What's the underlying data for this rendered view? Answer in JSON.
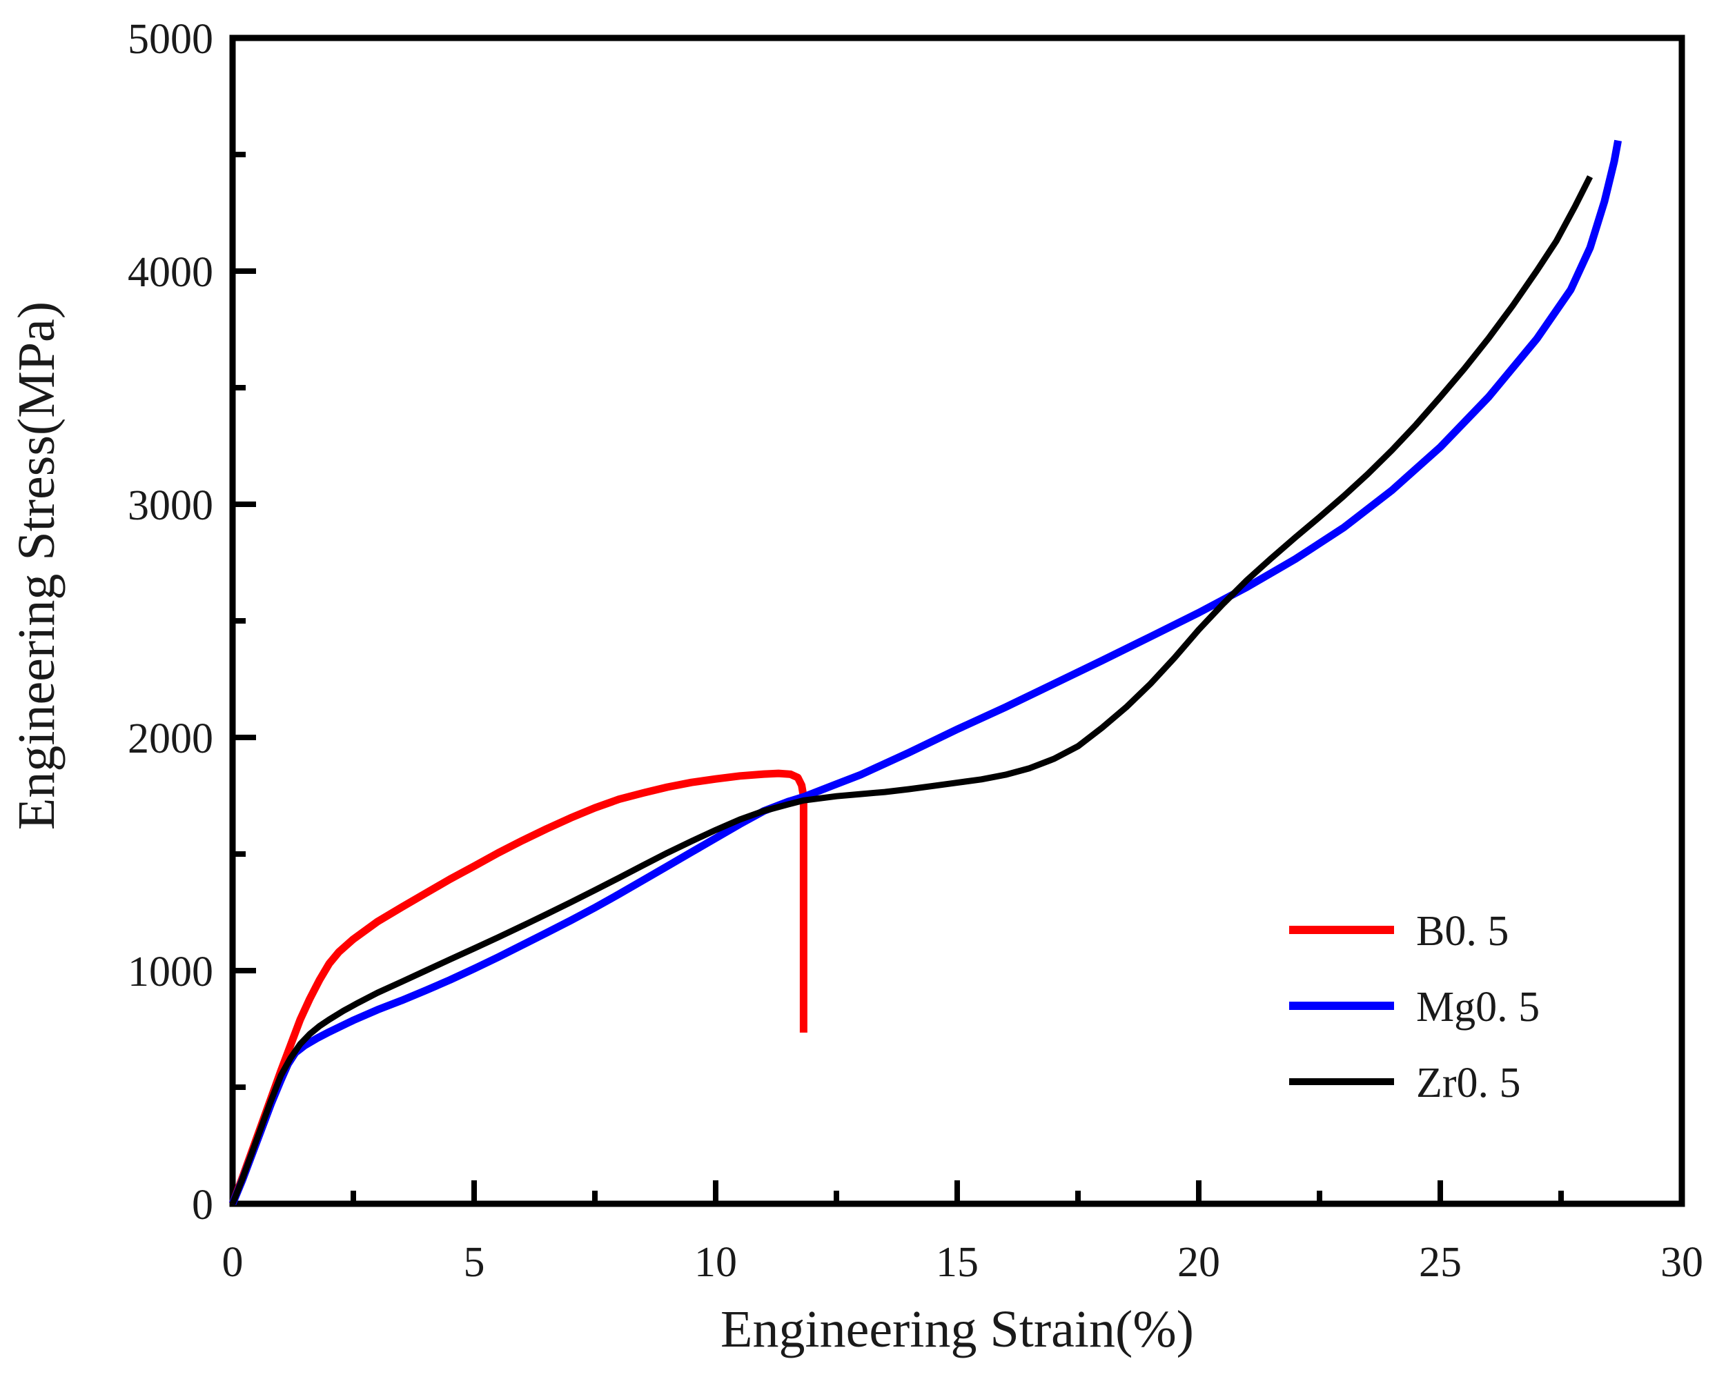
{
  "figure": {
    "background": "#ffffff",
    "frame_color": "#000000"
  },
  "chart_data": {
    "type": "line",
    "title": "",
    "xlabel": "Engineering Strain(%)",
    "ylabel": "Engineering Stress(MPa)",
    "xlim": [
      0,
      30
    ],
    "ylim": [
      0,
      5000
    ],
    "x_major_ticks": [
      0,
      5,
      10,
      15,
      20,
      25,
      30
    ],
    "x_minor_ticks": [
      2.5,
      7.5,
      12.5,
      17.5,
      22.5,
      27.5
    ],
    "y_major_ticks": [
      0,
      1000,
      2000,
      3000,
      4000,
      5000
    ],
    "y_minor_ticks": [
      500,
      1500,
      2500,
      3500,
      4500
    ],
    "grid": false,
    "legend_position": "right-middle-lower",
    "series": [
      {
        "name": "B0. 5",
        "color": "#ff0000",
        "line_width": 11,
        "points": [
          [
            0,
            0
          ],
          [
            0.2,
            110
          ],
          [
            0.4,
            225
          ],
          [
            0.6,
            340
          ],
          [
            0.8,
            455
          ],
          [
            1.0,
            570
          ],
          [
            1.2,
            680
          ],
          [
            1.4,
            790
          ],
          [
            1.6,
            880
          ],
          [
            1.8,
            960
          ],
          [
            2.0,
            1030
          ],
          [
            2.2,
            1080
          ],
          [
            2.5,
            1135
          ],
          [
            3.0,
            1210
          ],
          [
            3.5,
            1272
          ],
          [
            4.0,
            1332
          ],
          [
            4.5,
            1392
          ],
          [
            5.0,
            1448
          ],
          [
            5.5,
            1505
          ],
          [
            6.0,
            1558
          ],
          [
            6.5,
            1608
          ],
          [
            7.0,
            1655
          ],
          [
            7.5,
            1698
          ],
          [
            8.0,
            1735
          ],
          [
            8.5,
            1762
          ],
          [
            9.0,
            1787
          ],
          [
            9.5,
            1807
          ],
          [
            10.0,
            1822
          ],
          [
            10.5,
            1835
          ],
          [
            11.0,
            1843
          ],
          [
            11.3,
            1846
          ],
          [
            11.55,
            1842
          ],
          [
            11.7,
            1828
          ],
          [
            11.78,
            1795
          ],
          [
            11.82,
            1746
          ],
          [
            11.82,
            734
          ]
        ]
      },
      {
        "name": "Mg0. 5",
        "color": "#0000ff",
        "line_width": 11,
        "points": [
          [
            0,
            0
          ],
          [
            0.2,
            100
          ],
          [
            0.4,
            210
          ],
          [
            0.6,
            320
          ],
          [
            0.8,
            430
          ],
          [
            1.0,
            530
          ],
          [
            1.15,
            600
          ],
          [
            1.3,
            648
          ],
          [
            1.5,
            680
          ],
          [
            1.75,
            710
          ],
          [
            2.0,
            737
          ],
          [
            2.5,
            787
          ],
          [
            3.0,
            832
          ],
          [
            3.5,
            872
          ],
          [
            4.0,
            915
          ],
          [
            4.5,
            960
          ],
          [
            5.0,
            1008
          ],
          [
            5.5,
            1058
          ],
          [
            6.0,
            1110
          ],
          [
            6.5,
            1162
          ],
          [
            7.0,
            1215
          ],
          [
            7.5,
            1270
          ],
          [
            8.0,
            1328
          ],
          [
            8.5,
            1388
          ],
          [
            9.0,
            1448
          ],
          [
            9.5,
            1508
          ],
          [
            10.0,
            1568
          ],
          [
            10.5,
            1628
          ],
          [
            11.0,
            1685
          ],
          [
            11.5,
            1725
          ],
          [
            11.82,
            1745
          ],
          [
            12.5,
            1800
          ],
          [
            13,
            1840
          ],
          [
            14,
            1935
          ],
          [
            15,
            2035
          ],
          [
            16,
            2130
          ],
          [
            17,
            2230
          ],
          [
            18,
            2330
          ],
          [
            19,
            2432
          ],
          [
            20,
            2535
          ],
          [
            21,
            2645
          ],
          [
            22,
            2765
          ],
          [
            23,
            2900
          ],
          [
            24,
            3060
          ],
          [
            25,
            3245
          ],
          [
            26,
            3460
          ],
          [
            27,
            3710
          ],
          [
            27.7,
            3920
          ],
          [
            28.1,
            4100
          ],
          [
            28.4,
            4300
          ],
          [
            28.6,
            4470
          ],
          [
            28.68,
            4560
          ]
        ]
      },
      {
        "name": "Zr0. 5",
        "color": "#000000",
        "line_width": 9,
        "points": [
          [
            0,
            0
          ],
          [
            0.2,
            105
          ],
          [
            0.4,
            218
          ],
          [
            0.6,
            332
          ],
          [
            0.8,
            445
          ],
          [
            1.0,
            550
          ],
          [
            1.2,
            625
          ],
          [
            1.4,
            685
          ],
          [
            1.6,
            728
          ],
          [
            1.8,
            762
          ],
          [
            2.0,
            790
          ],
          [
            2.3,
            828
          ],
          [
            2.6,
            862
          ],
          [
            3.0,
            905
          ],
          [
            3.5,
            952
          ],
          [
            4.0,
            1000
          ],
          [
            4.5,
            1048
          ],
          [
            5.0,
            1095
          ],
          [
            5.5,
            1143
          ],
          [
            6.0,
            1192
          ],
          [
            6.5,
            1242
          ],
          [
            7.0,
            1293
          ],
          [
            7.5,
            1345
          ],
          [
            8.0,
            1398
          ],
          [
            8.5,
            1452
          ],
          [
            9.0,
            1505
          ],
          [
            9.5,
            1555
          ],
          [
            10.0,
            1603
          ],
          [
            10.5,
            1648
          ],
          [
            11.0,
            1685
          ],
          [
            11.5,
            1713
          ],
          [
            11.82,
            1730
          ],
          [
            12.5,
            1748
          ],
          [
            13.0,
            1757
          ],
          [
            13.5,
            1766
          ],
          [
            14.0,
            1778
          ],
          [
            14.5,
            1792
          ],
          [
            15.0,
            1806
          ],
          [
            15.5,
            1820
          ],
          [
            16.0,
            1840
          ],
          [
            16.5,
            1868
          ],
          [
            17.0,
            1908
          ],
          [
            17.5,
            1962
          ],
          [
            18.0,
            2042
          ],
          [
            18.5,
            2130
          ],
          [
            19.0,
            2230
          ],
          [
            19.5,
            2342
          ],
          [
            20.0,
            2462
          ],
          [
            20.5,
            2572
          ],
          [
            21.0,
            2675
          ],
          [
            21.5,
            2768
          ],
          [
            22.0,
            2858
          ],
          [
            22.5,
            2945
          ],
          [
            23.0,
            3035
          ],
          [
            23.5,
            3130
          ],
          [
            24.0,
            3232
          ],
          [
            24.5,
            3342
          ],
          [
            25.0,
            3460
          ],
          [
            25.5,
            3582
          ],
          [
            26.0,
            3712
          ],
          [
            26.5,
            3852
          ],
          [
            27.0,
            4002
          ],
          [
            27.4,
            4128
          ],
          [
            27.8,
            4282
          ],
          [
            28.1,
            4405
          ]
        ]
      }
    ]
  }
}
